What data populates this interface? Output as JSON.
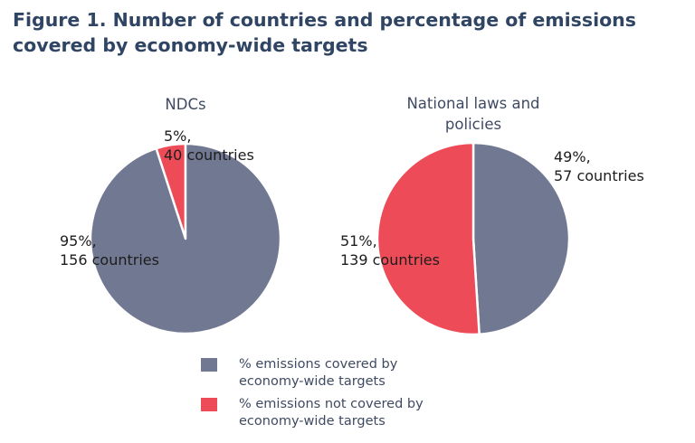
{
  "title": "Figure 1. Number of countries and percentage of emissions covered by economy-wide targets",
  "colors": {
    "covered": "#717892",
    "not_covered": "#ec4b57",
    "divider": "#ffffff"
  },
  "chart_data": [
    {
      "type": "pie",
      "title": "NDCs",
      "slices": [
        {
          "category": "covered",
          "value": 95,
          "percent_label": "95%,",
          "countries_label": "156 countries"
        },
        {
          "category": "not_covered",
          "value": 5,
          "percent_label": "5%,",
          "countries_label": "40 countries"
        }
      ]
    },
    {
      "type": "pie",
      "title": "National laws and policies",
      "slices": [
        {
          "category": "covered",
          "value": 49,
          "percent_label": "49%,",
          "countries_label": "57 countries"
        },
        {
          "category": "not_covered",
          "value": 51,
          "percent_label": "51%,",
          "countries_label": "139 countries"
        }
      ]
    }
  ],
  "legend": [
    {
      "category": "covered",
      "line1": "% emissions covered by",
      "line2": "economy-wide targets"
    },
    {
      "category": "not_covered",
      "line1": "% emissions not covered by",
      "line2": "economy-wide targets"
    }
  ]
}
